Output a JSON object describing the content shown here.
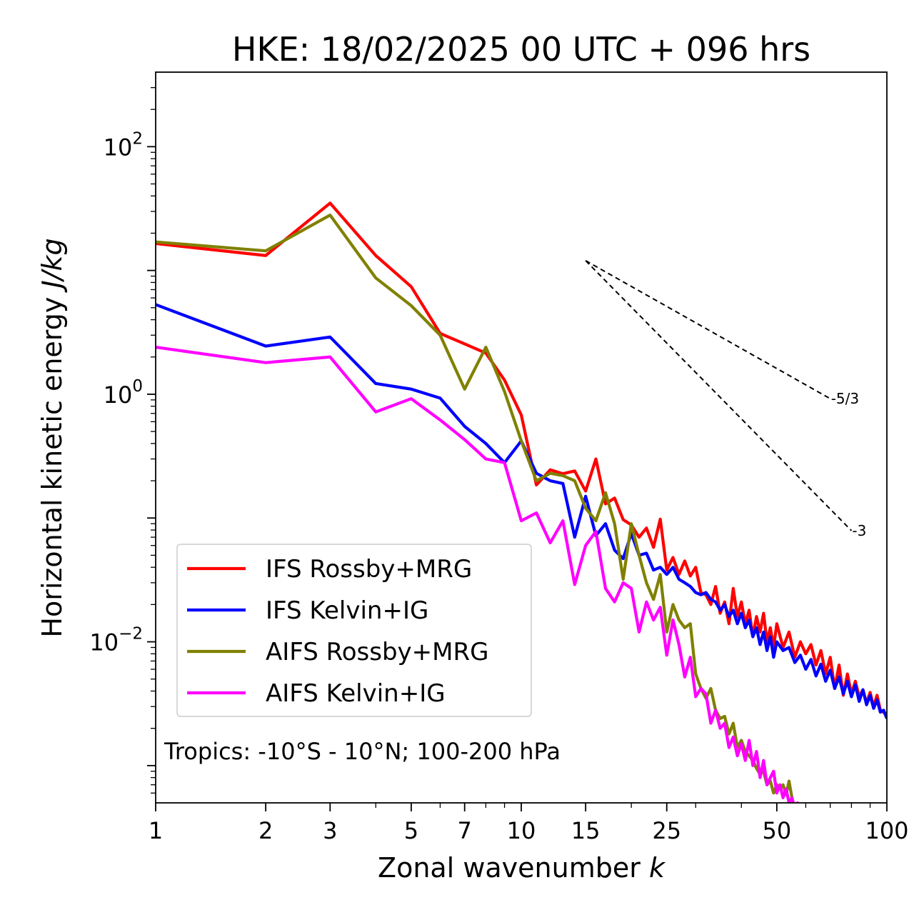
{
  "chart_data": {
    "type": "line",
    "title": "HKE: 18/02/2025 00 UTC + 096 hrs",
    "xlabel": "Zonal wavenumber",
    "xlabel_italic": "k",
    "ylabel": "Horizontal kinetic energy",
    "ylabel_italic": "J/kg",
    "xscale": "log",
    "yscale": "log",
    "xlim": [
      1,
      100
    ],
    "ylim": [
      0.0005,
      400
    ],
    "x_ticks": [
      1,
      2,
      3,
      5,
      7,
      10,
      15,
      25,
      50,
      100
    ],
    "x_tick_labels": [
      "1",
      "2",
      "3",
      "5",
      "7",
      "10",
      "15",
      "25",
      "50",
      "100"
    ],
    "y_ticks": [
      {
        "value": 100,
        "base": "10",
        "exp": "2"
      },
      {
        "value": 1,
        "base": "10",
        "exp": "0"
      },
      {
        "value": 0.01,
        "base": "10",
        "exp": "−2"
      }
    ],
    "grid": false,
    "legend_position": "lower-left",
    "annotation": "Tropics: -10°S - 10°N; 100-200 hPa",
    "reference_lines": [
      {
        "label": "-5/3",
        "slope": -1.6667,
        "x_start": 15,
        "y_start": 12,
        "x_end": 70
      },
      {
        "label": "-3",
        "slope": -3,
        "x_start": 15,
        "y_start": 12,
        "x_end": 80
      }
    ],
    "series": [
      {
        "name": "IFS Rossby+MRG",
        "color": "#ff0000",
        "x": [
          1,
          2,
          3,
          4,
          5,
          6,
          7,
          8,
          9,
          10,
          11,
          12,
          13,
          14,
          15,
          16,
          17,
          18,
          19,
          20,
          21,
          22,
          23,
          24,
          25,
          26,
          27,
          28,
          29,
          30,
          31,
          32,
          33,
          34,
          35,
          36,
          37,
          38,
          39,
          40,
          41,
          42,
          43,
          44,
          45,
          46,
          47,
          48,
          49,
          50,
          52,
          54,
          56,
          58,
          60,
          62,
          64,
          66,
          68,
          70,
          72,
          74,
          76,
          78,
          80,
          82,
          84,
          86,
          88,
          90,
          92,
          94,
          96,
          98,
          100
        ],
        "y": [
          16.5,
          13.2,
          35,
          13.2,
          7.4,
          3.1,
          2.55,
          2.15,
          1.3,
          0.68,
          0.185,
          0.245,
          0.228,
          0.24,
          0.165,
          0.3,
          0.13,
          0.145,
          0.097,
          0.088,
          0.07,
          0.083,
          0.058,
          0.098,
          0.038,
          0.048,
          0.035,
          0.045,
          0.034,
          0.04,
          0.025,
          0.024,
          0.02,
          0.028,
          0.017,
          0.021,
          0.014,
          0.027,
          0.016,
          0.021,
          0.014,
          0.018,
          0.011,
          0.016,
          0.012,
          0.017,
          0.01,
          0.013,
          0.009,
          0.014,
          0.009,
          0.012,
          0.0075,
          0.01,
          0.008,
          0.0095,
          0.0065,
          0.0085,
          0.0055,
          0.0075,
          0.0042,
          0.0065,
          0.0037,
          0.0055,
          0.0038,
          0.0048,
          0.0036,
          0.0041,
          0.0032,
          0.0039,
          0.003,
          0.0037,
          0.0028,
          0.0027,
          0.0025
        ]
      },
      {
        "name": "IFS Kelvin+IG",
        "color": "#0000ff",
        "x": [
          1,
          2,
          3,
          4,
          5,
          6,
          7,
          8,
          9,
          10,
          11,
          12,
          13,
          14,
          15,
          16,
          17,
          18,
          19,
          20,
          21,
          22,
          23,
          24,
          25,
          26,
          27,
          28,
          29,
          30,
          31,
          32,
          33,
          34,
          35,
          36,
          37,
          38,
          39,
          40,
          41,
          42,
          43,
          44,
          45,
          46,
          47,
          48,
          49,
          50,
          52,
          54,
          56,
          58,
          60,
          62,
          64,
          66,
          68,
          70,
          72,
          74,
          76,
          78,
          80,
          82,
          84,
          86,
          88,
          90,
          92,
          94,
          96,
          98,
          100
        ],
        "y": [
          5.3,
          2.45,
          2.9,
          1.22,
          1.1,
          0.93,
          0.55,
          0.4,
          0.28,
          0.42,
          0.23,
          0.2,
          0.19,
          0.07,
          0.15,
          0.072,
          0.09,
          0.055,
          0.047,
          0.075,
          0.05,
          0.052,
          0.038,
          0.04,
          0.035,
          0.04,
          0.032,
          0.03,
          0.028,
          0.025,
          0.024,
          0.025,
          0.022,
          0.021,
          0.018,
          0.02,
          0.016,
          0.018,
          0.014,
          0.017,
          0.013,
          0.015,
          0.011,
          0.013,
          0.0095,
          0.012,
          0.0085,
          0.011,
          0.0075,
          0.01,
          0.0085,
          0.009,
          0.0068,
          0.0078,
          0.006,
          0.0072,
          0.0053,
          0.0066,
          0.0048,
          0.0059,
          0.0042,
          0.0052,
          0.0038,
          0.0048,
          0.0036,
          0.0045,
          0.0033,
          0.0041,
          0.0031,
          0.0037,
          0.0029,
          0.0034,
          0.0027,
          0.0028,
          0.0024
        ]
      },
      {
        "name": "AIFS Rossby+MRG",
        "color": "#808000",
        "x": [
          1,
          2,
          3,
          4,
          5,
          6,
          7,
          8,
          9,
          10,
          11,
          12,
          13,
          14,
          15,
          16,
          17,
          18,
          19,
          20,
          21,
          22,
          23,
          24,
          25,
          26,
          27,
          28,
          29,
          30,
          31,
          32,
          33,
          34,
          35,
          36,
          37,
          38,
          39,
          40,
          41,
          42,
          43,
          44,
          45,
          46,
          47,
          48,
          49,
          50,
          51,
          52,
          53,
          54,
          55
        ],
        "y": [
          17,
          14.4,
          28,
          8.7,
          5.2,
          3,
          1.1,
          2.4,
          1.05,
          0.42,
          0.2,
          0.23,
          0.22,
          0.2,
          0.12,
          0.095,
          0.16,
          0.09,
          0.032,
          0.09,
          0.05,
          0.03,
          0.022,
          0.035,
          0.012,
          0.02,
          0.015,
          0.013,
          0.014,
          0.0055,
          0.0042,
          0.0035,
          0.0042,
          0.0028,
          0.0024,
          0.0025,
          0.0018,
          0.0022,
          0.0014,
          0.0016,
          0.0013,
          0.0012,
          0.0011,
          0.00095,
          0.00085,
          0.0009,
          0.0007,
          0.00075,
          0.0006,
          0.0007,
          0.00065,
          0.0007,
          0.00058,
          0.00075,
          0.00055
        ]
      },
      {
        "name": "AIFS Kelvin+IG",
        "color": "#ff00ff",
        "x": [
          1,
          2,
          3,
          4,
          5,
          6,
          7,
          8,
          9,
          10,
          11,
          12,
          13,
          14,
          15,
          16,
          17,
          18,
          19,
          20,
          21,
          22,
          23,
          24,
          25,
          26,
          27,
          28,
          29,
          30,
          31,
          32,
          33,
          34,
          35,
          36,
          37,
          38,
          39,
          40,
          41,
          42,
          43,
          44,
          45,
          46,
          47,
          48,
          49,
          50,
          51,
          52,
          53,
          54,
          55,
          56,
          57,
          58,
          59,
          60
        ],
        "y": [
          2.4,
          1.8,
          2,
          0.72,
          0.92,
          0.62,
          0.43,
          0.3,
          0.28,
          0.095,
          0.11,
          0.063,
          0.095,
          0.029,
          0.06,
          0.078,
          0.027,
          0.021,
          0.03,
          0.027,
          0.012,
          0.021,
          0.015,
          0.019,
          0.0078,
          0.015,
          0.0095,
          0.0052,
          0.0075,
          0.0036,
          0.0042,
          0.0038,
          0.0022,
          0.0028,
          0.002,
          0.0022,
          0.0014,
          0.0017,
          0.0012,
          0.0015,
          0.0011,
          0.0016,
          0.001,
          0.0013,
          0.0008,
          0.0011,
          0.0007,
          0.0008,
          0.0009,
          0.0006,
          0.0007,
          0.00055,
          0.00065,
          0.0005,
          0.00055,
          0.00045,
          0.0005,
          0.0004,
          0.00045,
          0.00042
        ]
      }
    ]
  }
}
